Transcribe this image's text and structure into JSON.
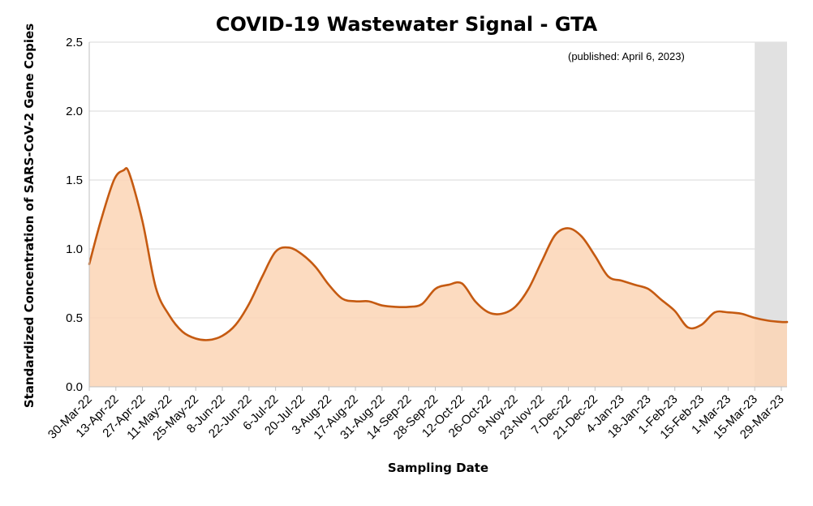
{
  "chart_data": {
    "type": "area",
    "title": "COVID-19 Wastewater Signal - GTA",
    "annotation": "(published: April 6, 2023)",
    "xlabel": "Sampling Date",
    "ylabel": "Standardized Concentration of SARS-CoV-2 Gene Copies",
    "ylim": [
      0,
      2.5
    ],
    "yticks": [
      "0.0",
      "0.5",
      "1.0",
      "1.5",
      "2.0",
      "2.5"
    ],
    "x_start": "2022-03-30",
    "x_end": "2023-04-01",
    "xtick_labels": [
      "30-Mar-22",
      "13-Apr-22",
      "27-Apr-22",
      "11-May-22",
      "25-May-22",
      "8-Jun-22",
      "22-Jun-22",
      "6-Jul-22",
      "20-Jul-22",
      "3-Aug-22",
      "17-Aug-22",
      "31-Aug-22",
      "14-Sep-22",
      "28-Sep-22",
      "12-Oct-22",
      "26-Oct-22",
      "9-Nov-22",
      "23-Nov-22",
      "7-Dec-22",
      "21-Dec-22",
      "4-Jan-23",
      "18-Jan-23",
      "1-Feb-23",
      "15-Feb-23",
      "1-Mar-23",
      "15-Mar-23",
      "29-Mar-23"
    ],
    "shaded_region_start": "2023-03-15",
    "grid": true,
    "series": [
      {
        "color": "#C55A11",
        "fill": "#FCD5B5",
        "x": [
          "2022-03-30",
          "2022-04-05",
          "2022-04-12",
          "2022-04-17",
          "2022-04-20",
          "2022-04-27",
          "2022-05-04",
          "2022-05-11",
          "2022-05-18",
          "2022-05-25",
          "2022-06-01",
          "2022-06-08",
          "2022-06-15",
          "2022-06-22",
          "2022-06-29",
          "2022-07-06",
          "2022-07-13",
          "2022-07-20",
          "2022-07-27",
          "2022-08-03",
          "2022-08-10",
          "2022-08-17",
          "2022-08-24",
          "2022-08-31",
          "2022-09-07",
          "2022-09-14",
          "2022-09-21",
          "2022-09-28",
          "2022-10-05",
          "2022-10-12",
          "2022-10-19",
          "2022-10-26",
          "2022-11-02",
          "2022-11-09",
          "2022-11-16",
          "2022-11-23",
          "2022-11-30",
          "2022-12-07",
          "2022-12-14",
          "2022-12-21",
          "2022-12-28",
          "2023-01-04",
          "2023-01-11",
          "2023-01-18",
          "2023-01-25",
          "2023-02-01",
          "2023-02-08",
          "2023-02-15",
          "2023-02-22",
          "2023-03-01",
          "2023-03-08",
          "2023-03-15",
          "2023-03-22",
          "2023-03-29",
          "2023-04-01"
        ],
        "y": [
          0.89,
          1.2,
          1.5,
          1.57,
          1.55,
          1.2,
          0.72,
          0.52,
          0.4,
          0.35,
          0.34,
          0.37,
          0.45,
          0.6,
          0.8,
          0.98,
          1.01,
          0.96,
          0.87,
          0.74,
          0.64,
          0.62,
          0.62,
          0.59,
          0.58,
          0.58,
          0.6,
          0.71,
          0.74,
          0.75,
          0.62,
          0.54,
          0.53,
          0.58,
          0.71,
          0.91,
          1.1,
          1.15,
          1.09,
          0.95,
          0.8,
          0.77,
          0.74,
          0.71,
          0.63,
          0.55,
          0.43,
          0.45,
          0.54,
          0.54,
          0.53,
          0.5,
          0.48,
          0.47,
          0.47
        ]
      }
    ]
  }
}
